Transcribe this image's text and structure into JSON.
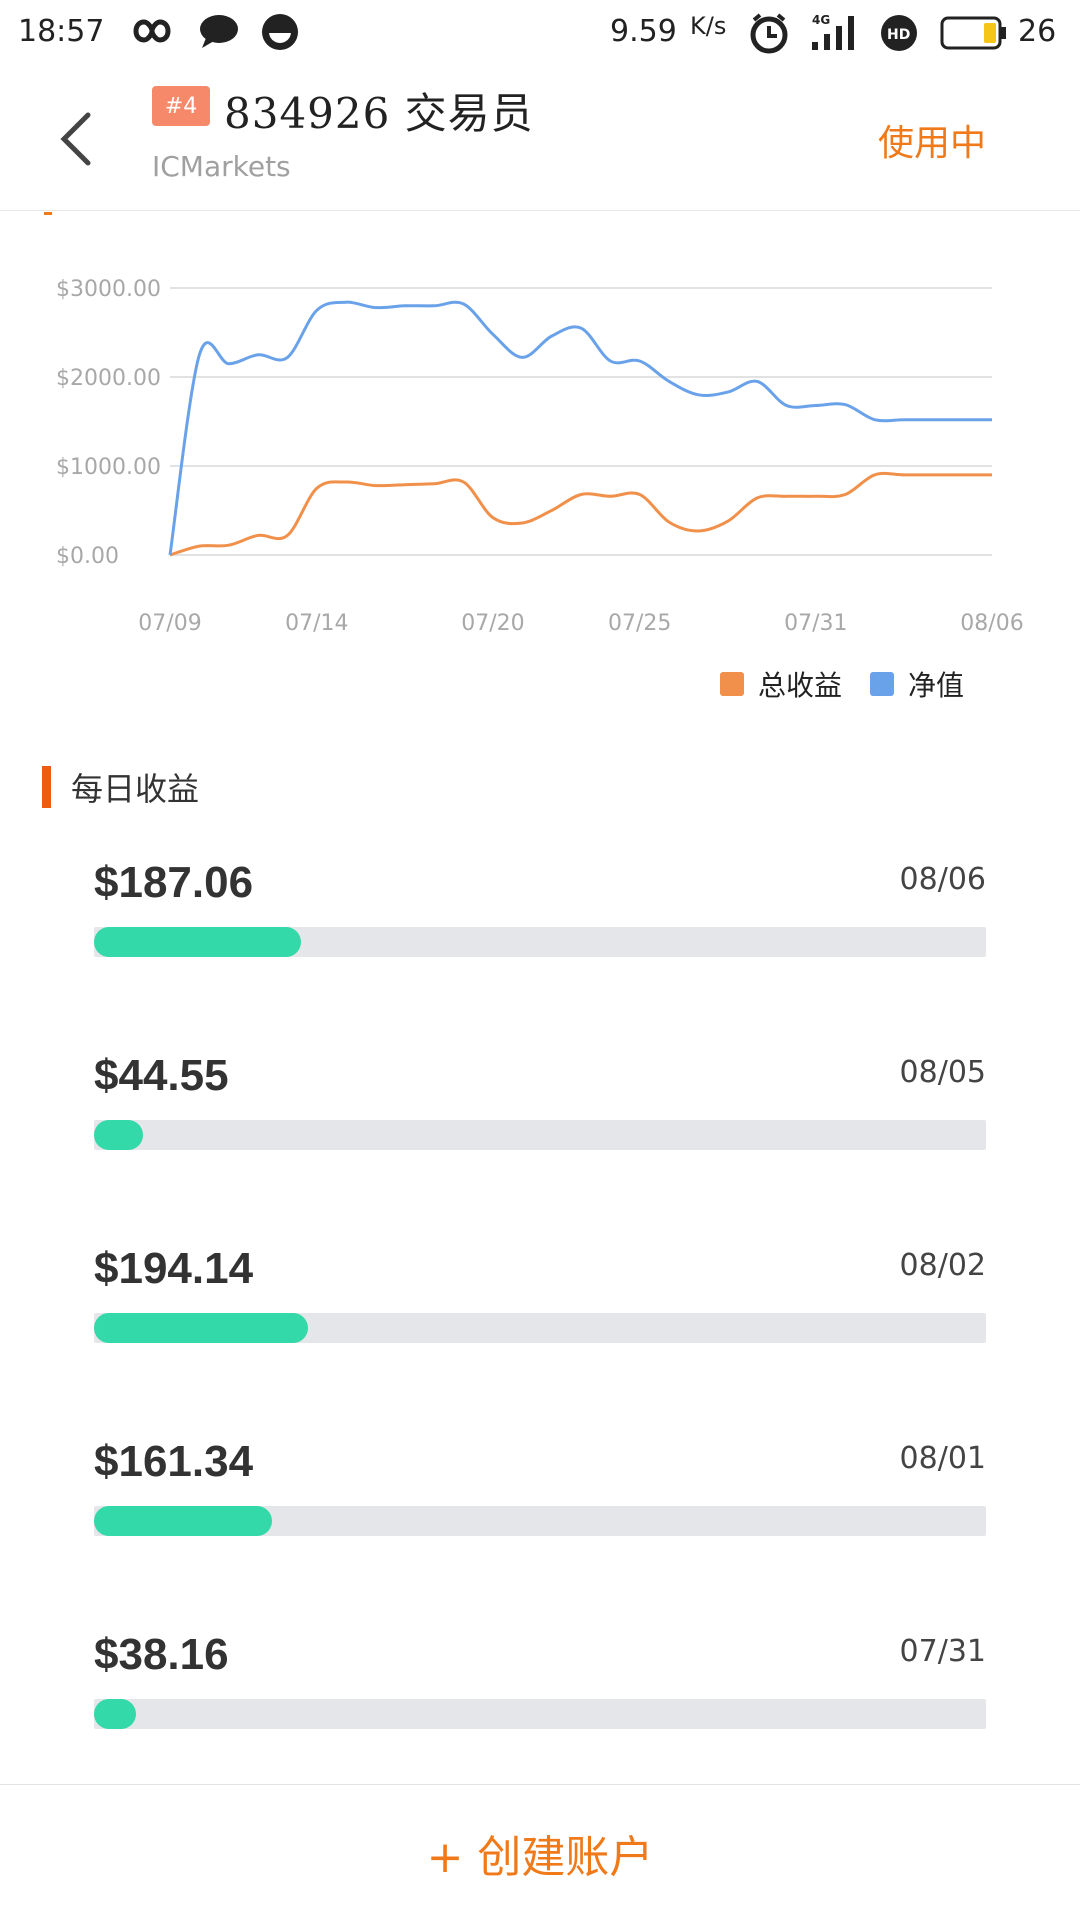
{
  "status_bar": {
    "time": "18:57",
    "speed": "9.59",
    "speed_unit": "K/s",
    "battery": "26",
    "icons": [
      "infinity-icon",
      "chat-bubble-icon",
      "circle-app-icon",
      "alarm-icon",
      "signal-4g-icon",
      "hd-icon",
      "battery-icon"
    ]
  },
  "header": {
    "badge": "#4",
    "title": "834926 交易员",
    "broker": "ICMarkets",
    "status": "使用中"
  },
  "chart_data": {
    "type": "line",
    "x": [
      "07/09",
      "07/10",
      "07/11",
      "07/12",
      "07/13",
      "07/14",
      "07/15",
      "07/16",
      "07/17",
      "07/18",
      "07/19",
      "07/20",
      "07/21",
      "07/22",
      "07/23",
      "07/24",
      "07/25",
      "07/26",
      "07/27",
      "07/28",
      "07/29",
      "07/30",
      "07/31",
      "08/01",
      "08/02",
      "08/03",
      "08/04",
      "08/05",
      "08/06"
    ],
    "x_ticks": [
      "07/09",
      "07/14",
      "07/20",
      "07/25",
      "07/31",
      "08/06"
    ],
    "y_ticks": [
      "$0.00",
      "$1000.00",
      "$2000.00",
      "$3000.00"
    ],
    "ylim": [
      0,
      3000
    ],
    "series": [
      {
        "name": "总收益",
        "color": "#f0904a",
        "values": [
          0,
          100,
          110,
          220,
          220,
          750,
          820,
          780,
          790,
          800,
          820,
          420,
          360,
          500,
          680,
          660,
          680,
          370,
          270,
          380,
          640,
          660,
          660,
          680,
          900,
          900,
          900,
          900,
          900
        ]
      },
      {
        "name": "净值",
        "color": "#6aa2ea",
        "values": [
          0,
          2250,
          2150,
          2250,
          2220,
          2750,
          2840,
          2780,
          2800,
          2800,
          2820,
          2480,
          2220,
          2460,
          2550,
          2180,
          2180,
          1950,
          1800,
          1830,
          1950,
          1680,
          1680,
          1690,
          1520,
          1520,
          1520,
          1520,
          1520
        ]
      }
    ]
  },
  "daily": {
    "section_title": "每日收益",
    "items": [
      {
        "amount": "$187.06",
        "date": "08/06",
        "fraction": 0.232
      },
      {
        "amount": "$44.55",
        "date": "08/05",
        "fraction": 0.055
      },
      {
        "amount": "$194.14",
        "date": "08/02",
        "fraction": 0.24
      },
      {
        "amount": "$161.34",
        "date": "08/01",
        "fraction": 0.199
      },
      {
        "amount": "$38.16",
        "date": "07/31",
        "fraction": 0.047
      }
    ]
  },
  "footer": {
    "create_label": "+ 创建账户"
  },
  "colors": {
    "accent": "#f07a1a",
    "bar_fill": "#33d9a8",
    "bar_track": "#e5e6ea",
    "badge": "#f5896a"
  }
}
